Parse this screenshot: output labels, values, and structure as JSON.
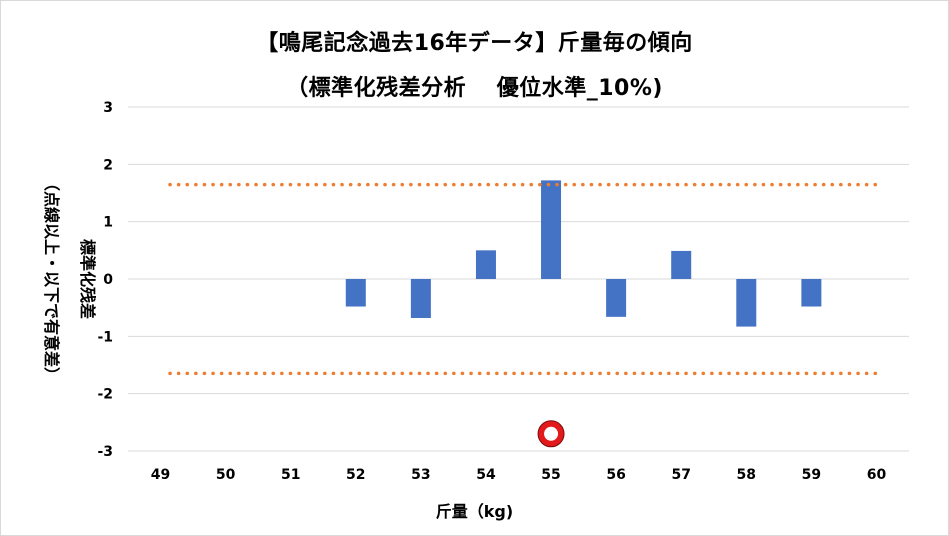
{
  "chart_data": {
    "type": "bar",
    "title": "【鳴尾記念過去16年データ】斤量毎の傾向",
    "subtitle": "（標準化残差分析　 優位水準_10%)",
    "xlabel": "斤量（kg)",
    "ylabel_line1": "標準化残差",
    "ylabel_line2": "（点線以上・以下で有意差）",
    "categories": [
      "49",
      "50",
      "51",
      "52",
      "53",
      "54",
      "55",
      "56",
      "57",
      "58",
      "59",
      "60"
    ],
    "values": [
      null,
      null,
      null,
      -0.48,
      -0.68,
      0.5,
      1.72,
      -0.66,
      0.49,
      -0.83,
      -0.48,
      null
    ],
    "ylim": [
      -3,
      3
    ],
    "yticks": [
      "3",
      "2",
      "1",
      "0",
      "-1",
      "-2",
      "-3"
    ],
    "threshold_upper": 1.645,
    "threshold_lower": -1.645,
    "marker": {
      "category": "55",
      "value": -2.7
    },
    "grid": true,
    "legend": "none",
    "colors": {
      "bar": "#4472c4",
      "threshold": "#ed7d31",
      "grid": "#d9d9d9",
      "marker_outer": "#e31a1c",
      "marker_inner": "#ffffff"
    }
  }
}
